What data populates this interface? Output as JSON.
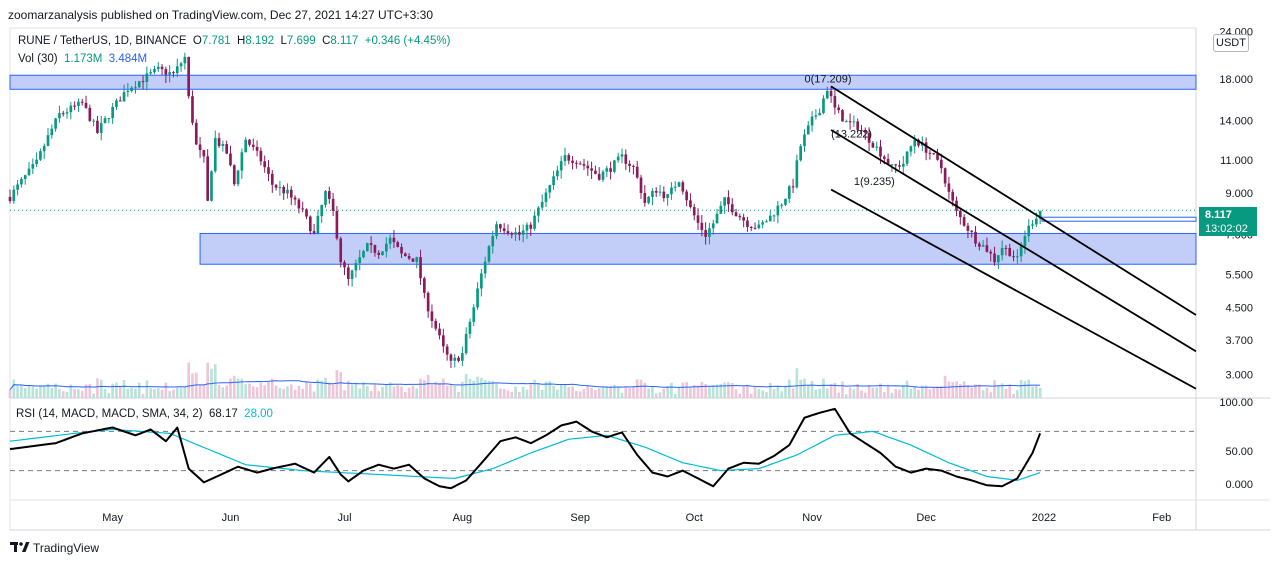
{
  "publisher_line": "zoomarzanalysis published on TradingView.com, Dec 27, 2021 14:27 UTC+3:30",
  "legend": {
    "symbol": "RUNE / TetherUS, 1D, BINANCE",
    "open_label": "O",
    "open": "7.781",
    "high_label": "H",
    "high": "8.192",
    "low_label": "L",
    "low": "7.699",
    "close_label": "C",
    "close": "8.117",
    "change": "+0.346 (+4.45%)"
  },
  "volume_legend": {
    "label": "Vol (30)",
    "v1": "1.173M",
    "v2": "3.484M"
  },
  "rsi_legend": {
    "label": "RSI (14, MACD, MACD, SMA, 34, 2)",
    "v1": "68.17",
    "v2": "28.00"
  },
  "currency_badge": "USDT",
  "last_price": {
    "price": "8.117",
    "countdown": "13:02:02"
  },
  "footer_logo": "TradingView",
  "colors": {
    "up": "#089981",
    "down": "#8b1a5a",
    "zone_fill": "#aebdf5",
    "zone_stroke": "#2962ff",
    "vol_ma": "#2962ff",
    "rsi_line": "#000000",
    "rsi_signal": "#00bcd4",
    "grid": "#f0f3fa"
  },
  "chart_data": {
    "type": "candlestick",
    "title": "RUNE / TetherUS, 1D, BINANCE",
    "y_scale": "log",
    "ylim": [
      2.6,
      24.5
    ],
    "y_ticks": [
      "24.000",
      "18.000",
      "14.000",
      "11.000",
      "9.000",
      "7.000",
      "5.500",
      "4.500",
      "3.700",
      "3.000"
    ],
    "x_ticks": [
      "May",
      "Jun",
      "Jul",
      "Aug",
      "Sep",
      "Oct",
      "Nov",
      "Dec",
      "2022",
      "Feb"
    ],
    "x_tick_days": [
      0,
      31,
      61,
      92,
      123,
      153,
      184,
      214,
      245,
      276
    ],
    "x_start_day": -27,
    "x_end_day": 285,
    "price_path": [
      [
        -27,
        8.8
      ],
      [
        -20,
        10.8
      ],
      [
        -14,
        14.5
      ],
      [
        -8,
        15.5
      ],
      [
        -4,
        13.0
      ],
      [
        0,
        15.0
      ],
      [
        4,
        17.0
      ],
      [
        8,
        18.0
      ],
      [
        12,
        19.0
      ],
      [
        16,
        18.5
      ],
      [
        19,
        20.5
      ],
      [
        20,
        16.0
      ],
      [
        22,
        12.0
      ],
      [
        24,
        11.0
      ],
      [
        25,
        8.5
      ],
      [
        27,
        12.5
      ],
      [
        30,
        11.5
      ],
      [
        32,
        9.5
      ],
      [
        35,
        12.5
      ],
      [
        39,
        11.0
      ],
      [
        42,
        9.5
      ],
      [
        46,
        9.0
      ],
      [
        50,
        8.0
      ],
      [
        53,
        7.0
      ],
      [
        56,
        9.0
      ],
      [
        58,
        8.0
      ],
      [
        60,
        6.0
      ],
      [
        62,
        5.3
      ],
      [
        64,
        5.8
      ],
      [
        67,
        6.5
      ],
      [
        70,
        6.3
      ],
      [
        73,
        6.8
      ],
      [
        76,
        6.2
      ],
      [
        80,
        6.0
      ],
      [
        82,
        4.8
      ],
      [
        84,
        4.2
      ],
      [
        87,
        3.5
      ],
      [
        89,
        3.2
      ],
      [
        92,
        3.4
      ],
      [
        95,
        4.5
      ],
      [
        98,
        6.0
      ],
      [
        101,
        7.5
      ],
      [
        104,
        7.2
      ],
      [
        107,
        7.0
      ],
      [
        110,
        7.4
      ],
      [
        113,
        8.5
      ],
      [
        116,
        9.8
      ],
      [
        119,
        11.2
      ],
      [
        122,
        11.0
      ],
      [
        125,
        10.5
      ],
      [
        128,
        10.0
      ],
      [
        131,
        10.5
      ],
      [
        134,
        11.2
      ],
      [
        137,
        10.5
      ],
      [
        140,
        8.5
      ],
      [
        143,
        9.2
      ],
      [
        146,
        8.8
      ],
      [
        149,
        9.8
      ],
      [
        152,
        8.2
      ],
      [
        154,
        7.5
      ],
      [
        156,
        7.0
      ],
      [
        158,
        7.5
      ],
      [
        161,
        8.6
      ],
      [
        164,
        8.0
      ],
      [
        167,
        7.5
      ],
      [
        170,
        7.3
      ],
      [
        173,
        7.8
      ],
      [
        176,
        8.5
      ],
      [
        179,
        9.5
      ],
      [
        181,
        12.0
      ],
      [
        184,
        14.0
      ],
      [
        186,
        15.0
      ],
      [
        188,
        17.0
      ],
      [
        190,
        15.0
      ],
      [
        193,
        13.8
      ],
      [
        196,
        13.5
      ],
      [
        199,
        12.5
      ],
      [
        202,
        11.5
      ],
      [
        205,
        10.5
      ],
      [
        208,
        10.8
      ],
      [
        211,
        12.5
      ],
      [
        213,
        12.0
      ],
      [
        215,
        11.5
      ],
      [
        218,
        10.5
      ],
      [
        220,
        9.0
      ],
      [
        222,
        8.0
      ],
      [
        224,
        7.5
      ],
      [
        227,
        6.8
      ],
      [
        230,
        6.4
      ],
      [
        232,
        6.0
      ],
      [
        234,
        6.5
      ],
      [
        236,
        6.3
      ],
      [
        238,
        6.0
      ],
      [
        240,
        7.0
      ],
      [
        242,
        7.6
      ],
      [
        244,
        8.1
      ]
    ],
    "zones": [
      {
        "from_day": -27,
        "to_day": 285,
        "low": 16.9,
        "high": 18.4
      },
      {
        "from_day": 23,
        "to_day": 285,
        "low": 5.85,
        "high": 7.05
      }
    ],
    "channel": {
      "start_day": 189,
      "end_day": 285,
      "lines": [
        {
          "start": 17.2,
          "end": 4.3
        },
        {
          "start": 13.2,
          "end": 3.45
        },
        {
          "start": 9.2,
          "end": 2.75
        }
      ],
      "labels": [
        {
          "text": "0(17.209)",
          "day": 182,
          "price": 17.6
        },
        {
          "text": "(13.222)",
          "day": 189,
          "price": 12.6
        },
        {
          "text": "1(9.235)",
          "day": 195,
          "price": 9.45
        }
      ]
    },
    "last_price_line": 8.117,
    "volume_note": "relative volume per day with 30-day moving average",
    "rsi": {
      "ylim": [
        0,
        100
      ],
      "y_ticks": [
        "100.00",
        "50.00",
        "0.000"
      ],
      "bands": [
        70,
        30
      ],
      "rsi_path": [
        [
          -27,
          52
        ],
        [
          -15,
          58
        ],
        [
          -8,
          68
        ],
        [
          0,
          74
        ],
        [
          6,
          66
        ],
        [
          10,
          72
        ],
        [
          14,
          60
        ],
        [
          17,
          74
        ],
        [
          20,
          32
        ],
        [
          24,
          18
        ],
        [
          28,
          25
        ],
        [
          33,
          34
        ],
        [
          38,
          28
        ],
        [
          43,
          33
        ],
        [
          48,
          37
        ],
        [
          53,
          28
        ],
        [
          57,
          44
        ],
        [
          60,
          26
        ],
        [
          62,
          19
        ],
        [
          66,
          30
        ],
        [
          70,
          36
        ],
        [
          74,
          32
        ],
        [
          78,
          36
        ],
        [
          82,
          22
        ],
        [
          86,
          14
        ],
        [
          89,
          12
        ],
        [
          93,
          20
        ],
        [
          98,
          42
        ],
        [
          102,
          60
        ],
        [
          106,
          64
        ],
        [
          110,
          58
        ],
        [
          114,
          66
        ],
        [
          118,
          76
        ],
        [
          122,
          80
        ],
        [
          126,
          70
        ],
        [
          130,
          64
        ],
        [
          134,
          69
        ],
        [
          138,
          46
        ],
        [
          142,
          28
        ],
        [
          146,
          24
        ],
        [
          150,
          30
        ],
        [
          154,
          22
        ],
        [
          158,
          14
        ],
        [
          162,
          32
        ],
        [
          166,
          38
        ],
        [
          170,
          37
        ],
        [
          174,
          45
        ],
        [
          178,
          56
        ],
        [
          182,
          84
        ],
        [
          186,
          89
        ],
        [
          190,
          93
        ],
        [
          194,
          68
        ],
        [
          198,
          58
        ],
        [
          202,
          48
        ],
        [
          206,
          34
        ],
        [
          210,
          28
        ],
        [
          214,
          32
        ],
        [
          218,
          30
        ],
        [
          222,
          24
        ],
        [
          226,
          20
        ],
        [
          230,
          15
        ],
        [
          234,
          14
        ],
        [
          238,
          22
        ],
        [
          242,
          48
        ],
        [
          244,
          68
        ]
      ],
      "signal_path": [
        [
          -27,
          60
        ],
        [
          -10,
          68
        ],
        [
          0,
          72
        ],
        [
          15,
          68
        ],
        [
          25,
          52
        ],
        [
          35,
          36
        ],
        [
          50,
          30
        ],
        [
          60,
          28
        ],
        [
          70,
          26
        ],
        [
          80,
          24
        ],
        [
          90,
          22
        ],
        [
          100,
          32
        ],
        [
          110,
          48
        ],
        [
          120,
          62
        ],
        [
          130,
          66
        ],
        [
          140,
          54
        ],
        [
          150,
          38
        ],
        [
          160,
          30
        ],
        [
          170,
          32
        ],
        [
          180,
          46
        ],
        [
          190,
          66
        ],
        [
          200,
          70
        ],
        [
          210,
          56
        ],
        [
          220,
          38
        ],
        [
          230,
          24
        ],
        [
          238,
          20
        ],
        [
          244,
          28
        ]
      ]
    }
  }
}
